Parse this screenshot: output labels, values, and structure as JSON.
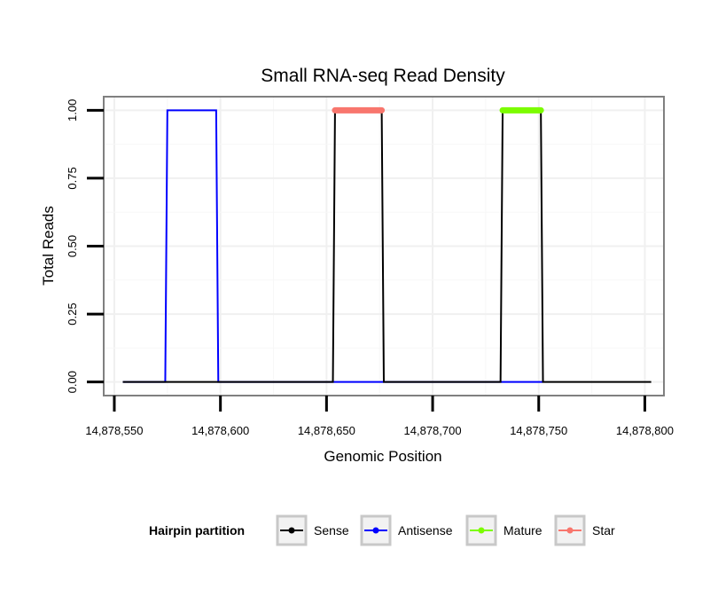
{
  "chart_data": {
    "type": "line",
    "title": "Small RNA-seq Read Density",
    "xlabel": "Genomic Position",
    "ylabel": "Total Reads",
    "xlim": [
      14878545,
      14878809
    ],
    "ylim": [
      -0.05,
      1.05
    ],
    "x_ticks": [
      14878550,
      14878600,
      14878650,
      14878700,
      14878750,
      14878800
    ],
    "x_tick_labels": [
      "14,878,550",
      "14,878,600",
      "14,878,650",
      "14,878,700",
      "14,878,750",
      "14,878,800"
    ],
    "y_ticks": [
      0,
      0.25,
      0.5,
      0.75,
      1.0
    ],
    "y_tick_labels": [
      "0.00",
      "0.25",
      "0.50",
      "0.75",
      "1.00"
    ],
    "grid": true,
    "legend": {
      "title": "Hairpin partition",
      "position": "bottom",
      "entries": [
        "Sense",
        "Antisense",
        "Mature",
        "Star"
      ]
    },
    "series": [
      {
        "name": "Antisense",
        "color": "#0000ff",
        "x": [
          14878554,
          14878574,
          14878575,
          14878598,
          14878599,
          14878653,
          14878677,
          14878733,
          14878752
        ],
        "y": [
          0,
          0,
          1,
          1,
          0,
          0,
          0,
          0,
          0
        ]
      },
      {
        "name": "Sense",
        "color": "#000000",
        "x": [
          14878554,
          14878653,
          14878654,
          14878676,
          14878677,
          14878732,
          14878733,
          14878751,
          14878752,
          14878803
        ],
        "y": [
          0,
          0,
          1,
          1,
          0,
          0,
          1,
          1,
          0,
          0
        ]
      },
      {
        "name": "Star",
        "color": "#f8766d",
        "thick": true,
        "x": [
          14878654,
          14878676
        ],
        "y": [
          1,
          1
        ]
      },
      {
        "name": "Mature",
        "color": "#7cfc00",
        "thick": true,
        "x": [
          14878733,
          14878751
        ],
        "y": [
          1,
          1
        ]
      }
    ]
  }
}
